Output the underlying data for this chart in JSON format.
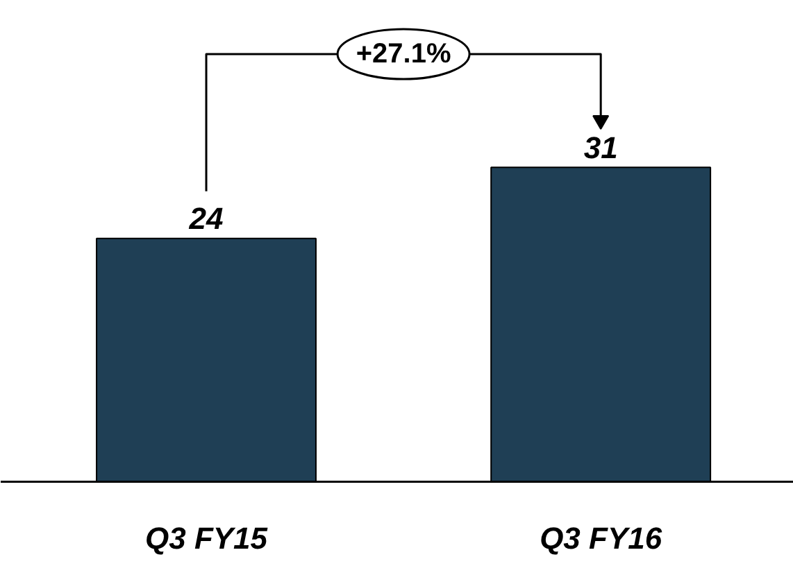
{
  "chart_data": {
    "type": "bar",
    "categories": [
      "Q3 FY15",
      "Q3 FY16"
    ],
    "values": [
      24,
      31
    ],
    "color": "#1f3f55",
    "data_labels": true,
    "annotations": [
      "+27.1%"
    ]
  }
}
